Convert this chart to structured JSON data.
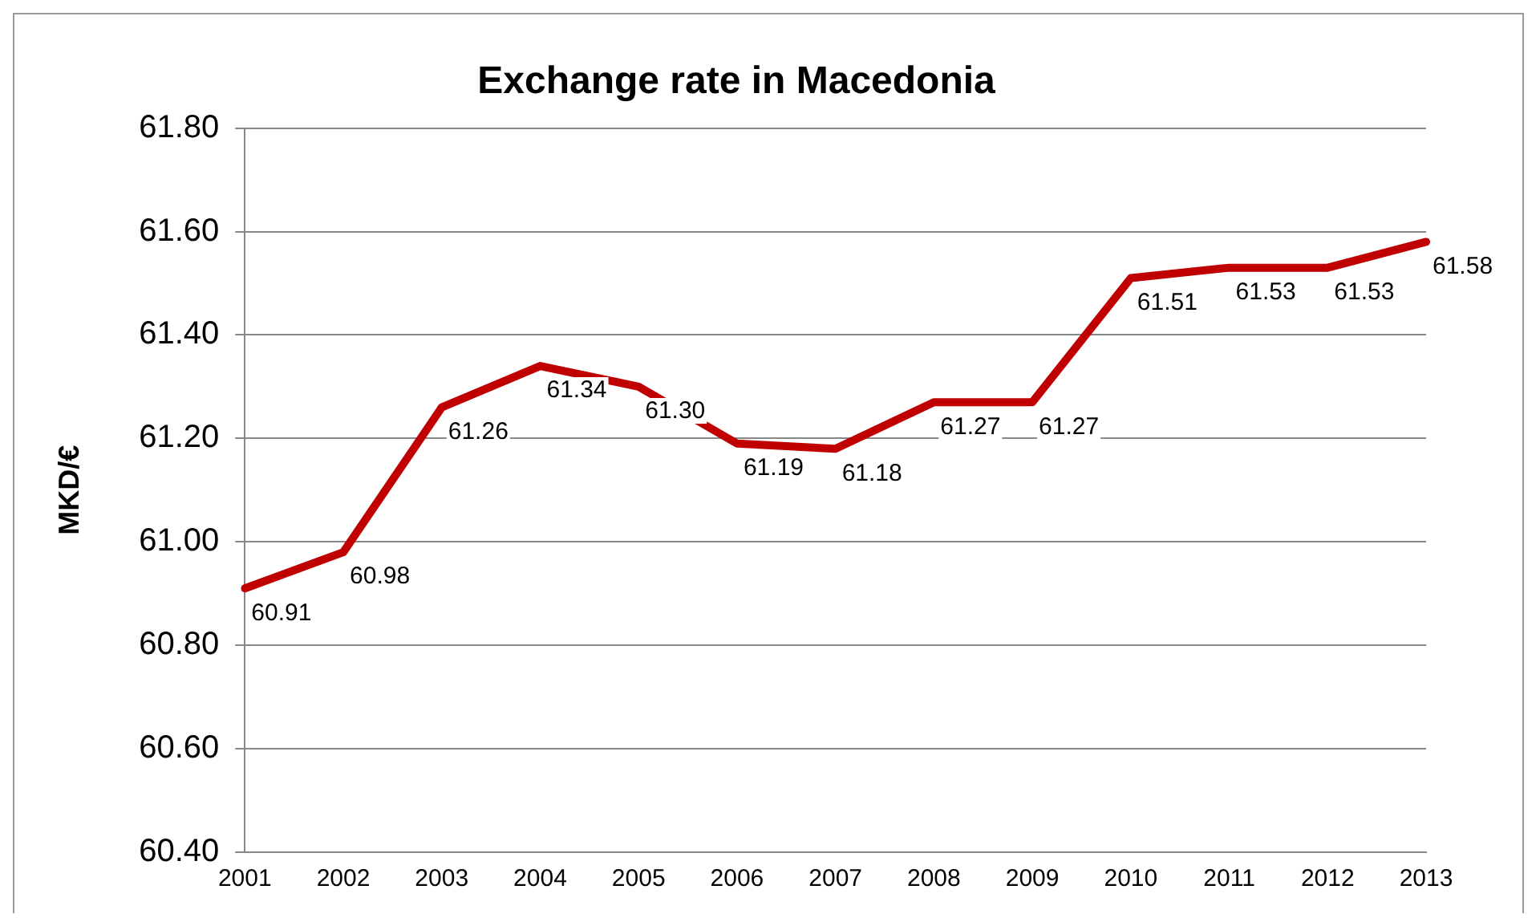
{
  "chart_data": {
    "type": "line",
    "title": "Exchange rate in Macedonia",
    "ylabel": "MKD/€",
    "categories": [
      "2001",
      "2002",
      "2003",
      "2004",
      "2005",
      "2006",
      "2007",
      "2008",
      "2009",
      "2010",
      "2011",
      "2012",
      "2013"
    ],
    "series": [
      {
        "color": "#c00000",
        "values": [
          60.91,
          60.98,
          61.26,
          61.34,
          61.3,
          61.19,
          61.18,
          61.27,
          61.27,
          61.51,
          61.53,
          61.53,
          61.58
        ],
        "value_labels": [
          "60.91",
          "60.98",
          "61.26",
          "61.34",
          "61.30",
          "61.19",
          "61.18",
          "61.27",
          "61.27",
          "61.51",
          "61.53",
          "61.53",
          "61.58"
        ]
      }
    ],
    "ylim": [
      60.4,
      61.8
    ],
    "yticks": [
      {
        "value": 60.4,
        "label": "60.40"
      },
      {
        "value": 60.6,
        "label": "60.60"
      },
      {
        "value": 60.8,
        "label": "60.80"
      },
      {
        "value": 61.0,
        "label": "61.00"
      },
      {
        "value": 61.2,
        "label": "61.20"
      },
      {
        "value": 61.4,
        "label": "61.40"
      },
      {
        "value": 61.6,
        "label": "61.60"
      },
      {
        "value": 61.8,
        "label": "61.80"
      }
    ],
    "grid": "y",
    "legend": false,
    "marker": "none",
    "line_style": "solid"
  }
}
